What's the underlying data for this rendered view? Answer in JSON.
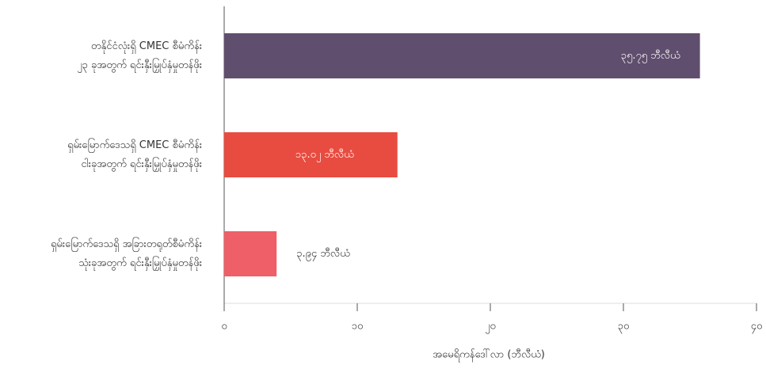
{
  "chart_data": {
    "type": "barh",
    "categories": [
      [
        "တနိုင်ငံလုံးရှိ CMEC စီမံကိန်း",
        "၂၃ ခုအတွက် ရင်းနှီးမြှုပ်နှံမှုတန်ဖိုး"
      ],
      [
        "ရှမ်းမြောက်ဒေသရှိ CMEC စီမံကိန်း",
        "ငါးခုအတွက် ရင်းနှီးမြှုပ်နှံမှုတန်ဖိုး"
      ],
      [
        "ရှမ်းမြောက်ဒေသရှိ အခြားတရုတ်စီမံကိန်း",
        "သုံးခုအတွက် ရင်းနှီးမြှုပ်နှံမှုတန်ဖိုး"
      ]
    ],
    "values": [
      35.75,
      13.02,
      3.94
    ],
    "value_labels": [
      "၃၅.၇၅ ဘီလီယံ",
      "၁၃.၀၂ ဘီလီယံ",
      "၃.၉၄ ဘီလီယံ"
    ],
    "colors": [
      "#604e6e",
      "#e84c41",
      "#ef5f67"
    ],
    "xlim": [
      0,
      40
    ],
    "xticks": [
      {
        "value": 0,
        "label": "၀"
      },
      {
        "value": 10,
        "label": "၁၀"
      },
      {
        "value": 20,
        "label": "၂၀"
      },
      {
        "value": 30,
        "label": "၃၀"
      },
      {
        "value": 40,
        "label": "၄၀"
      }
    ],
    "xlabel": "အမေရိကန်ဒေါ်လာ (ဘီလီယံ)"
  }
}
